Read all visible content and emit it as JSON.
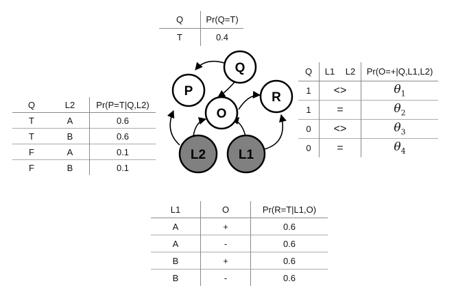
{
  "network": {
    "nodes": {
      "Q": {
        "label": "Q",
        "observed": false
      },
      "P": {
        "label": "P",
        "observed": false
      },
      "O": {
        "label": "O",
        "observed": false
      },
      "R": {
        "label": "R",
        "observed": false
      },
      "L2": {
        "label": "L2",
        "observed": true
      },
      "L1": {
        "label": "L1",
        "observed": true
      }
    },
    "edges": [
      [
        "Q",
        "P"
      ],
      [
        "Q",
        "O"
      ],
      [
        "O",
        "R"
      ],
      [
        "L2",
        "P"
      ],
      [
        "L2",
        "O"
      ],
      [
        "L1",
        "O"
      ],
      [
        "L1",
        "R"
      ]
    ],
    "colors": {
      "observed_fill": "#808080",
      "hidden_fill": "#ffffff",
      "stroke": "#000000"
    }
  },
  "table_q": {
    "headers": [
      "Q",
      "Pr(Q=T)"
    ],
    "rows": [
      [
        "T",
        "0.4"
      ]
    ]
  },
  "table_p": {
    "headers": [
      "Q",
      "L2",
      "Pr(P=T|Q,L2)"
    ],
    "rows": [
      [
        "T",
        "A",
        "0.6"
      ],
      [
        "T",
        "B",
        "0.6"
      ],
      [
        "F",
        "A",
        "0.1"
      ],
      [
        "F",
        "B",
        "0.1"
      ]
    ]
  },
  "table_o": {
    "headers": [
      "Q",
      "L1",
      "L2",
      "Pr(O=+|Q,L1,L2)"
    ],
    "rows": [
      {
        "q": "1",
        "rel": "<>",
        "theta": "θ",
        "sub": "1"
      },
      {
        "q": "1",
        "rel": "=",
        "theta": "θ",
        "sub": "2"
      },
      {
        "q": "0",
        "rel": "<>",
        "theta": "θ",
        "sub": "3"
      },
      {
        "q": "0",
        "rel": "=",
        "theta": "θ",
        "sub": "4"
      }
    ]
  },
  "table_r": {
    "headers": [
      "L1",
      "O",
      "Pr(R=T|L1,O)"
    ],
    "rows": [
      [
        "A",
        "+",
        "0.6"
      ],
      [
        "A",
        "-",
        "0.6"
      ],
      [
        "B",
        "+",
        "0.6"
      ],
      [
        "B",
        "-",
        "0.6"
      ]
    ]
  }
}
